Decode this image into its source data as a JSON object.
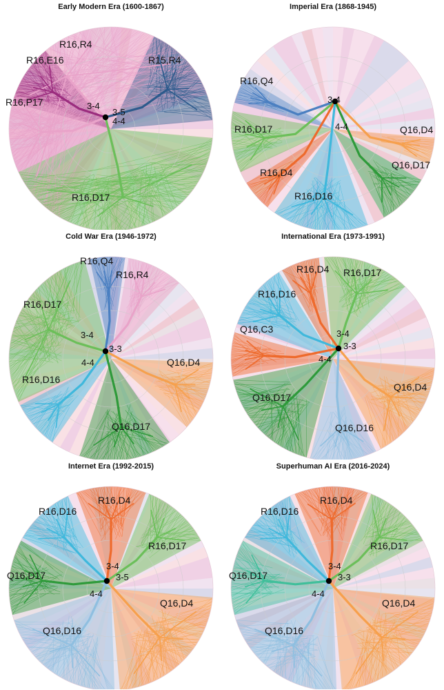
{
  "palette": {
    "pink": "#e9a3c9",
    "magenta": "#c04fa0",
    "darkpurple": "#9b2c7e",
    "blue": "#4a7fc1",
    "darkblue": "#2c5a8c",
    "lightblue": "#8fbfe0",
    "green": "#6bbf59",
    "darkgreen": "#2e9a3a",
    "orange": "#f6a04d",
    "darkorange": "#ee6a2c",
    "cyan": "#3fb8dc",
    "red": "#c8344a",
    "salmon": "#f4a6a0",
    "lavender": "#c7b4e0",
    "teal": "#3fbf9a",
    "gray": "#a9a9a9"
  },
  "panels": [
    {
      "title": "Early Modern Era (1600-1867)",
      "groups": [
        {
          "label": "R16,R4",
          "color": "pink",
          "from": 210,
          "to": 70
        },
        {
          "label": "R16,E16",
          "color": "darkpurple",
          "from": 285,
          "to": 320
        },
        {
          "label": "R15,R4",
          "color": "darkblue",
          "from": 25,
          "to": 85
        },
        {
          "label": "R16,P17",
          "color": "pink",
          "from": 245,
          "to": 290
        },
        {
          "label": "R16,D17",
          "color": "green",
          "from": 95,
          "to": 245
        }
      ],
      "nodes": [
        "3-4",
        "3-5",
        "4-4"
      ]
    },
    {
      "title": "Imperial Era (1868-1945)",
      "groups": [
        {
          "label": "R16,Q4",
          "color": "blue",
          "from": 285,
          "to": 300
        },
        {
          "label": "R16,D17",
          "color": "green",
          "from": 245,
          "to": 280
        },
        {
          "label": "Q16,D4",
          "color": "orange",
          "from": 95,
          "to": 110
        },
        {
          "label": "R16,D4",
          "color": "darkorange",
          "from": 220,
          "to": 238
        },
        {
          "label": "Q16,D17",
          "color": "darkgreen",
          "from": 120,
          "to": 150
        },
        {
          "label": "R16,D16",
          "color": "cyan",
          "from": 160,
          "to": 215
        }
      ],
      "nodes": [
        "3-4",
        "4-4"
      ]
    },
    {
      "title": "Cold War Era (1946-1972)",
      "groups": [
        {
          "label": "R16,Q4",
          "color": "blue",
          "from": 348,
          "to": 8
        },
        {
          "label": "R16,R4",
          "color": "pink",
          "from": 10,
          "to": 42
        },
        {
          "label": "R16,D17",
          "color": "green",
          "from": 245,
          "to": 345
        },
        {
          "label": "Q16,D4",
          "color": "orange",
          "from": 92,
          "to": 132
        },
        {
          "label": "R16,D16",
          "color": "cyan",
          "from": 215,
          "to": 243
        },
        {
          "label": "Q16,D17",
          "color": "darkgreen",
          "from": 145,
          "to": 198
        }
      ],
      "nodes": [
        "3-4",
        "3-3",
        "4-4"
      ]
    },
    {
      "title": "International Era (1973-1991)",
      "groups": [
        {
          "label": "R16,D4",
          "color": "darkorange",
          "from": 330,
          "to": 352
        },
        {
          "label": "R16,D17",
          "color": "green",
          "from": 355,
          "to": 45
        },
        {
          "label": "R16,D16",
          "color": "cyan",
          "from": 290,
          "to": 328
        },
        {
          "label": "Q16,C3",
          "color": "darkorange",
          "from": 260,
          "to": 285
        },
        {
          "label": "Q16,D4",
          "color": "orange",
          "from": 95,
          "to": 152
        },
        {
          "label": "Q16,D17",
          "color": "darkgreen",
          "from": 195,
          "to": 258
        },
        {
          "label": "Q16,D16",
          "color": "lightblue",
          "from": 155,
          "to": 193
        }
      ],
      "nodes": [
        "3-4",
        "3-3",
        "4-4"
      ]
    },
    {
      "title": "Internet Era (1992-2015)",
      "groups": [
        {
          "label": "R16,D16",
          "color": "cyan",
          "from": 300,
          "to": 335
        },
        {
          "label": "R16,D4",
          "color": "darkorange",
          "from": 340,
          "to": 20
        },
        {
          "label": "R16,D17",
          "color": "green",
          "from": 22,
          "to": 62
        },
        {
          "label": "Q16,D17",
          "color": "darkgreen",
          "from": 255,
          "to": 298
        },
        {
          "label": "Q16,D4",
          "color": "orange",
          "from": 95,
          "to": 175
        },
        {
          "label": "Q16,D16",
          "color": "lightblue",
          "from": 178,
          "to": 252
        }
      ],
      "nodes": [
        "3-4",
        "3-5",
        "4-4"
      ]
    },
    {
      "title": "Superhuman AI Era (2016-2024)",
      "groups": [
        {
          "label": "R16,D16",
          "color": "cyan",
          "from": 300,
          "to": 335
        },
        {
          "label": "R16,D4",
          "color": "darkorange",
          "from": 338,
          "to": 20
        },
        {
          "label": "R16,D17",
          "color": "green",
          "from": 22,
          "to": 62
        },
        {
          "label": "Q16,D17",
          "color": "teal",
          "from": 255,
          "to": 298
        },
        {
          "label": "Q16,D4",
          "color": "orange",
          "from": 95,
          "to": 175
        },
        {
          "label": "Q16,D16",
          "color": "lightblue",
          "from": 178,
          "to": 252
        }
      ],
      "nodes": [
        "3-4",
        "3-3",
        "4-4"
      ]
    }
  ]
}
